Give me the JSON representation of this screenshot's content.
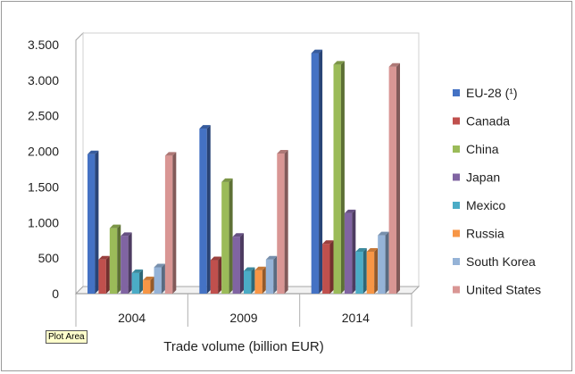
{
  "chart_data": {
    "type": "bar",
    "xlabel": "Trade volume (billion EUR)",
    "ylabel": "",
    "categories": [
      "2004",
      "2009",
      "2014"
    ],
    "ylim": [
      0,
      3500
    ],
    "yticks": [
      {
        "value": 0,
        "label": "0"
      },
      {
        "value": 500,
        "label": "500"
      },
      {
        "value": 1000,
        "label": "1.000"
      },
      {
        "value": 1500,
        "label": "1.500"
      },
      {
        "value": 2000,
        "label": "2.000"
      },
      {
        "value": 2500,
        "label": "2.500"
      },
      {
        "value": 3000,
        "label": "3.000"
      },
      {
        "value": 3500,
        "label": "3.500"
      }
    ],
    "grid": false,
    "three_d": true,
    "legend_position": "right",
    "series": [
      {
        "name": "EU-28 (¹)",
        "color": "#4472c4",
        "values": [
          1960,
          2320,
          3380
        ]
      },
      {
        "name": "Canada",
        "color": "#c0504d",
        "values": [
          480,
          470,
          700
        ]
      },
      {
        "name": "China",
        "color": "#9bbb59",
        "values": [
          920,
          1570,
          3220
        ]
      },
      {
        "name": "Japan",
        "color": "#8064a2",
        "values": [
          810,
          800,
          1130
        ]
      },
      {
        "name": "Mexico",
        "color": "#4bacc6",
        "values": [
          290,
          320,
          590
        ]
      },
      {
        "name": "Russia",
        "color": "#f79646",
        "values": [
          190,
          330,
          590
        ]
      },
      {
        "name": "South Korea",
        "color": "#95b3d7",
        "values": [
          370,
          480,
          820
        ]
      },
      {
        "name": "United States",
        "color": "#d99694",
        "values": [
          1940,
          1970,
          3190
        ]
      }
    ]
  },
  "tooltip": {
    "text": "Plot Area"
  }
}
